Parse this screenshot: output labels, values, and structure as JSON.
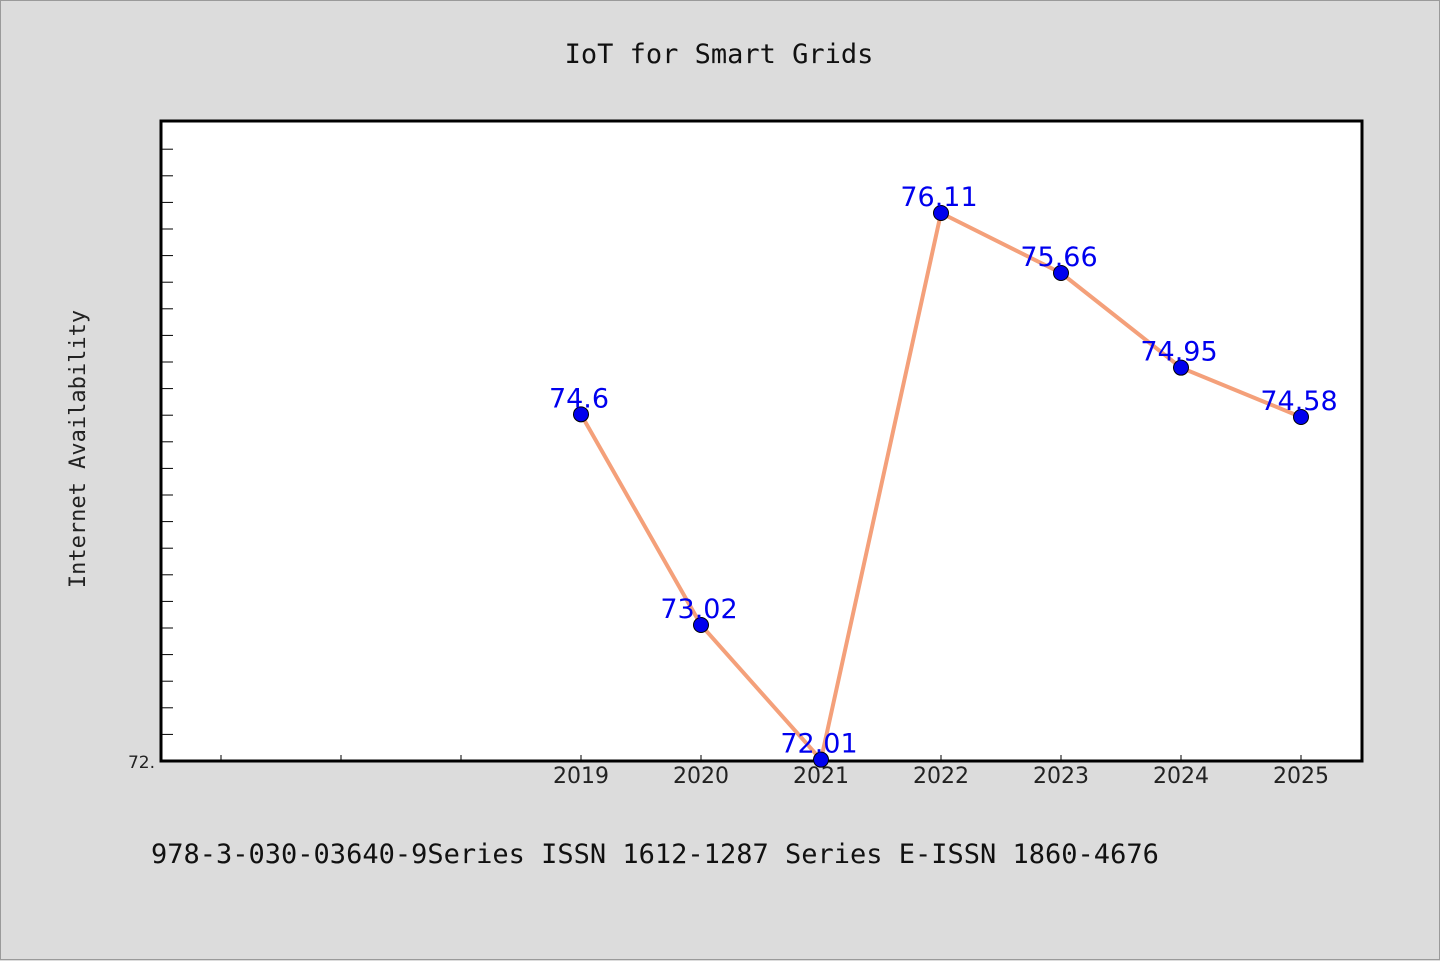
{
  "chart_data": {
    "type": "line",
    "title": "IoT for Smart Grids",
    "xlabel": "",
    "ylabel": "Internet Availability",
    "categories": [
      "2019",
      "2020",
      "2021",
      "2022",
      "2023",
      "2024",
      "2025"
    ],
    "values": [
      74.6,
      73.02,
      72.01,
      76.11,
      75.66,
      74.95,
      74.58
    ],
    "data_labels": [
      "74.6",
      "73.02",
      "72.01",
      "76.11",
      "75.66",
      "74.95",
      "74.58"
    ],
    "y_tick_labels": [
      "72."
    ],
    "ylim": [
      72.0,
      76.8
    ],
    "grid": false,
    "line_color": "#f4a07a",
    "marker_color": "#0000ee",
    "label_color": "#0000ee"
  },
  "footer_text": "978-3-030-03640-9Series ISSN 1612-1287 Series E-ISSN 1860-4676"
}
